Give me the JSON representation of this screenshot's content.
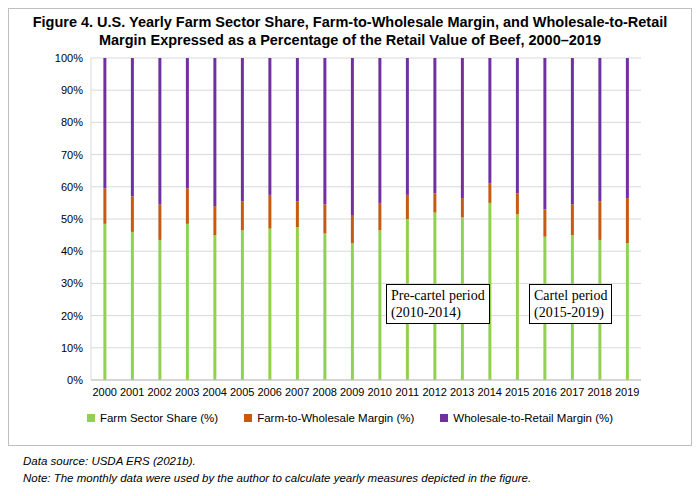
{
  "chart_data": {
    "type": "bar",
    "title": "Figure 4. U.S. Yearly Farm Sector Share, Farm-to-Wholesale Margin, and Wholesale-to-Retail Margin Expressed as a Percentage of the Retail Value of Beef, 2000–2019",
    "categories": [
      "2000",
      "2001",
      "2002",
      "2003",
      "2004",
      "2005",
      "2006",
      "2007",
      "2008",
      "2009",
      "2010",
      "2011",
      "2012",
      "2013",
      "2014",
      "2015",
      "2016",
      "2017",
      "2018",
      "2019"
    ],
    "series": [
      {
        "name": "Farm Sector Share (%)",
        "color": "#92d050",
        "values": [
          48.5,
          46,
          43.5,
          48.5,
          45,
          46.5,
          47,
          47.5,
          45.5,
          42.5,
          46.5,
          50,
          52,
          50.5,
          55,
          51.5,
          44.5,
          45,
          43.5,
          42.5
        ]
      },
      {
        "name": "Farm-to-Wholesale Margin (%)",
        "color": "#c55a11",
        "values": [
          11,
          11,
          11,
          11,
          9,
          9,
          10.5,
          8,
          9,
          8.5,
          8.5,
          7.5,
          6,
          6,
          6,
          6.5,
          8.5,
          9.5,
          12,
          14
        ]
      },
      {
        "name": "Wholesale-to-Retail Margin (%)",
        "color": "#7030a0",
        "values": [
          40.5,
          43,
          45.5,
          40.5,
          46,
          44.5,
          42.5,
          44.5,
          45.5,
          49,
          45,
          42.5,
          42,
          43.5,
          39,
          42,
          47,
          45.5,
          44.5,
          43.5
        ]
      }
    ],
    "stacked": true,
    "ylim": [
      0,
      100
    ],
    "yticks": [
      {
        "value": 0,
        "label": "0%"
      },
      {
        "value": 10,
        "label": "10%"
      },
      {
        "value": 20,
        "label": "20%"
      },
      {
        "value": 30,
        "label": "30%"
      },
      {
        "value": 40,
        "label": "40%"
      },
      {
        "value": 50,
        "label": "50%"
      },
      {
        "value": 60,
        "label": "60%"
      },
      {
        "value": 70,
        "label": "70%"
      },
      {
        "value": 80,
        "label": "80%"
      },
      {
        "value": 90,
        "label": "90%"
      },
      {
        "value": 100,
        "label": "100%"
      }
    ],
    "grid": true,
    "legend": "bottom",
    "annotations": [
      "Pre-cartel period (2010-2014)",
      "Cartel period (2015-2019)"
    ],
    "notes": [
      "Data source: USDA ERS (2021b).",
      "Note: The monthly data were used by the author to calculate yearly measures depicted in the figure."
    ]
  }
}
